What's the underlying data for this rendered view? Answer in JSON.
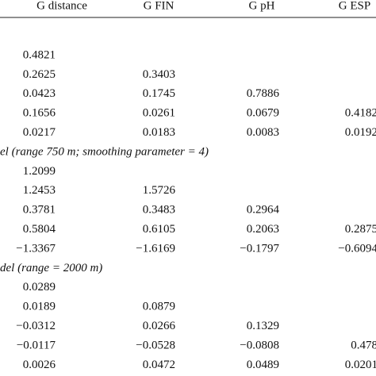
{
  "table": {
    "header": [
      "G distance",
      "G FIN",
      "G pH",
      "G ESP"
    ],
    "sections": [
      {
        "rows": [
          [
            "0.4821"
          ],
          [
            "0.2625",
            "0.3403"
          ],
          [
            "0.0423",
            "0.1745",
            "0.7886"
          ],
          [
            "0.1656",
            "0.0261",
            "0.0679",
            "0.4182"
          ],
          [
            "0.0217",
            "0.0183",
            "0.0083",
            "0.0192"
          ]
        ]
      },
      {
        "label": "el (range 750 m; smoothing parameter = 4)",
        "rows": [
          [
            "1.2099"
          ],
          [
            "1.2453",
            "1.5726"
          ],
          [
            "0.3781",
            "0.3483",
            "0.2964"
          ],
          [
            "0.5804",
            "0.6105",
            "0.2063",
            "0.2875"
          ],
          [
            "−1.3367",
            "−1.6169",
            "−0.1797",
            "−0.6094"
          ]
        ]
      },
      {
        "label": "del (range = 2000 m)",
        "rows": [
          [
            "0.0289"
          ],
          [
            "0.0189",
            "0.0879"
          ],
          [
            "−0.0312",
            "0.0266",
            "0.1329"
          ],
          [
            "−0.0117",
            "−0.0528",
            "−0.0808",
            "0.478"
          ],
          [
            "0.0026",
            "0.0472",
            "0.0489",
            "0.0201"
          ]
        ]
      }
    ]
  }
}
